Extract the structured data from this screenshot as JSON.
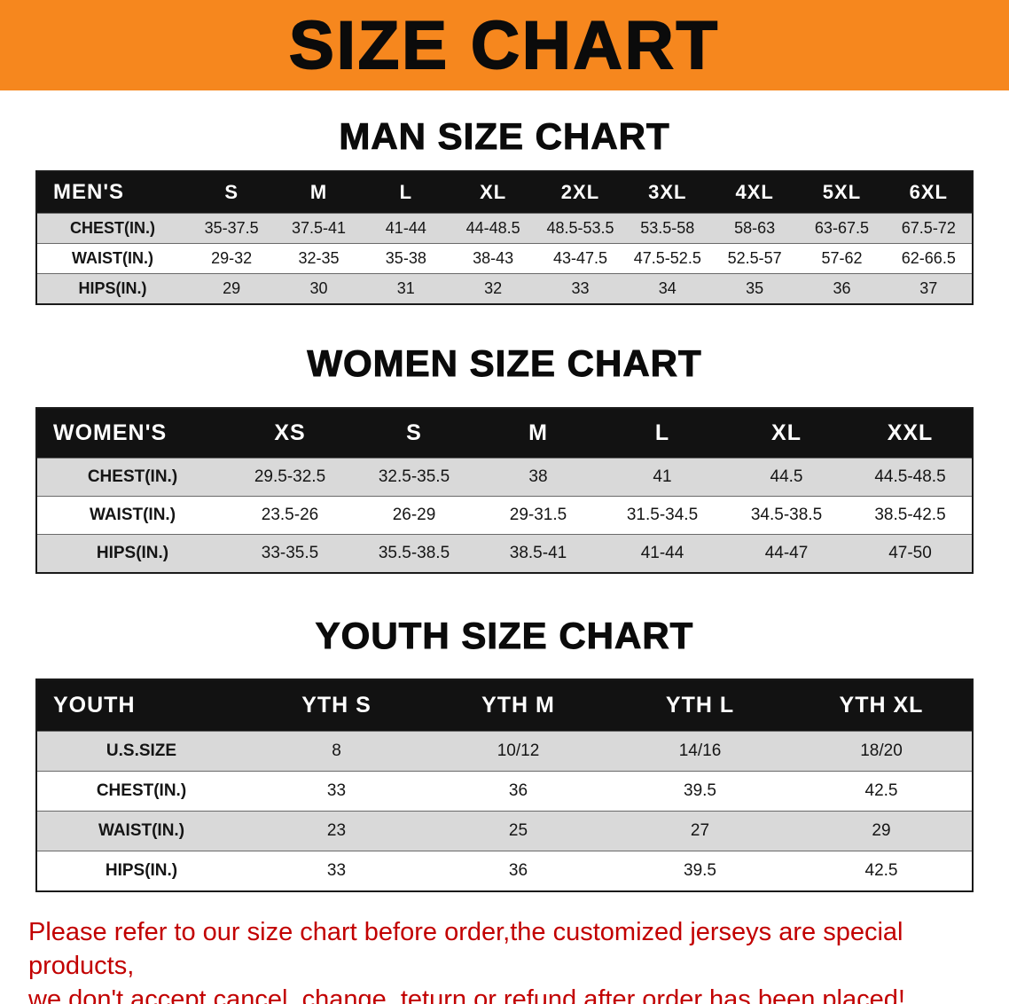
{
  "banner": {
    "title": "SIZE CHART"
  },
  "colors": {
    "banner_bg": "#F6871E",
    "header_bg": "#121212",
    "row_alt_bg": "#D9D9D9",
    "disclaimer_color": "#C20000"
  },
  "chart_data": [
    {
      "type": "table",
      "title": "MAN SIZE CHART",
      "columns": [
        "MEN'S",
        "S",
        "M",
        "L",
        "XL",
        "2XL",
        "3XL",
        "4XL",
        "5XL",
        "6XL"
      ],
      "rows": [
        [
          "CHEST(IN.)",
          "35-37.5",
          "37.5-41",
          "41-44",
          "44-48.5",
          "48.5-53.5",
          "53.5-58",
          "58-63",
          "63-67.5",
          "67.5-72"
        ],
        [
          "WAIST(IN.)",
          "29-32",
          "32-35",
          "35-38",
          "38-43",
          "43-47.5",
          "47.5-52.5",
          "52.5-57",
          "57-62",
          "62-66.5"
        ],
        [
          "HIPS(IN.)",
          "29",
          "30",
          "31",
          "32",
          "33",
          "34",
          "35",
          "36",
          "37"
        ]
      ]
    },
    {
      "type": "table",
      "title": "WOMEN SIZE CHART",
      "columns": [
        "WOMEN'S",
        "XS",
        "S",
        "M",
        "L",
        "XL",
        "XXL"
      ],
      "rows": [
        [
          "CHEST(IN.)",
          "29.5-32.5",
          "32.5-35.5",
          "38",
          "41",
          "44.5",
          "44.5-48.5"
        ],
        [
          "WAIST(IN.)",
          "23.5-26",
          "26-29",
          "29-31.5",
          "31.5-34.5",
          "34.5-38.5",
          "38.5-42.5"
        ],
        [
          "HIPS(IN.)",
          "33-35.5",
          "35.5-38.5",
          "38.5-41",
          "41-44",
          "44-47",
          "47-50"
        ]
      ]
    },
    {
      "type": "table",
      "title": "YOUTH SIZE CHART",
      "columns": [
        "YOUTH",
        "YTH S",
        "YTH M",
        "YTH L",
        "YTH XL"
      ],
      "rows": [
        [
          "U.S.SIZE",
          "8",
          "10/12",
          "14/16",
          "18/20"
        ],
        [
          "CHEST(IN.)",
          "33",
          "36",
          "39.5",
          "42.5"
        ],
        [
          "WAIST(IN.)",
          "23",
          "25",
          "27",
          "29"
        ],
        [
          "HIPS(IN.)",
          "33",
          "36",
          "39.5",
          "42.5"
        ]
      ]
    }
  ],
  "disclaimer": {
    "line1": "Please refer to our size chart before order,the customized jerseys are special products,",
    "line2": "we don't accept cancel, change, teturn or refund after order has been placed!"
  }
}
